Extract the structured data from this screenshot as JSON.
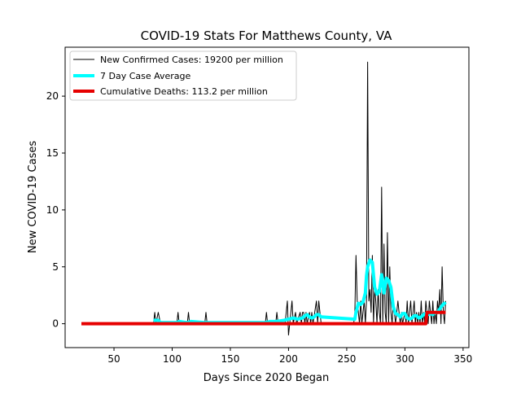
{
  "chart_data": {
    "type": "line",
    "title": "COVID-19 Stats For Matthews County, VA",
    "xlabel": "Days Since 2020 Began",
    "ylabel": "New COVID-19 Cases",
    "xlim": [
      8,
      355
    ],
    "ylim": [
      -2.1,
      24.3
    ],
    "xticks": [
      50,
      100,
      150,
      200,
      250,
      300,
      350
    ],
    "yticks": [
      0,
      5,
      10,
      15,
      20
    ],
    "grid": false,
    "legend_position": "top-left",
    "series": [
      {
        "name": "New Confirmed Cases: 19200 per million",
        "color": "#000000",
        "style": "thin",
        "points": [
          [
            84,
            0
          ],
          [
            85,
            1
          ],
          [
            86,
            0
          ],
          [
            88,
            1
          ],
          [
            90,
            0
          ],
          [
            104,
            0
          ],
          [
            105,
            1
          ],
          [
            106,
            0
          ],
          [
            113,
            0
          ],
          [
            114,
            1
          ],
          [
            115,
            0
          ],
          [
            128,
            0
          ],
          [
            129,
            1
          ],
          [
            130,
            0
          ],
          [
            180,
            0
          ],
          [
            181,
            1
          ],
          [
            182,
            0
          ],
          [
            189,
            0
          ],
          [
            190,
            1
          ],
          [
            191,
            0
          ],
          [
            197,
            0
          ],
          [
            198,
            1
          ],
          [
            199,
            2
          ],
          [
            200,
            -1
          ],
          [
            201,
            0
          ],
          [
            202,
            1
          ],
          [
            203,
            2
          ],
          [
            204,
            0
          ],
          [
            206,
            1
          ],
          [
            207,
            0
          ],
          [
            210,
            1
          ],
          [
            211,
            0
          ],
          [
            212,
            1
          ],
          [
            213,
            1
          ],
          [
            214,
            0
          ],
          [
            215,
            1
          ],
          [
            216,
            0
          ],
          [
            218,
            1
          ],
          [
            219,
            0
          ],
          [
            220,
            1
          ],
          [
            221,
            0
          ],
          [
            224,
            2
          ],
          [
            225,
            0
          ],
          [
            226,
            2
          ],
          [
            227,
            1
          ],
          [
            228,
            0
          ],
          [
            256,
            0
          ],
          [
            257,
            1
          ],
          [
            258,
            6
          ],
          [
            259,
            2
          ],
          [
            260,
            1
          ],
          [
            261,
            0
          ],
          [
            262,
            2
          ],
          [
            263,
            0
          ],
          [
            264,
            1
          ],
          [
            265,
            2
          ],
          [
            266,
            0
          ],
          [
            267,
            2
          ],
          [
            268,
            23
          ],
          [
            269,
            2
          ],
          [
            270,
            3
          ],
          [
            271,
            1
          ],
          [
            272,
            6
          ],
          [
            273,
            0
          ],
          [
            274,
            3
          ],
          [
            275,
            2
          ],
          [
            276,
            0
          ],
          [
            277,
            3
          ],
          [
            278,
            1
          ],
          [
            279,
            0
          ],
          [
            280,
            12
          ],
          [
            281,
            0
          ],
          [
            282,
            7
          ],
          [
            283,
            1
          ],
          [
            284,
            0
          ],
          [
            285,
            8
          ],
          [
            286,
            0
          ],
          [
            287,
            5
          ],
          [
            288,
            1
          ],
          [
            289,
            0
          ],
          [
            290,
            2
          ],
          [
            291,
            1
          ],
          [
            292,
            0
          ],
          [
            293,
            1
          ],
          [
            294,
            2
          ],
          [
            295,
            1
          ],
          [
            296,
            0
          ],
          [
            297,
            1
          ],
          [
            298,
            0
          ],
          [
            300,
            1
          ],
          [
            301,
            0
          ],
          [
            302,
            2
          ],
          [
            303,
            0
          ],
          [
            305,
            2
          ],
          [
            306,
            0
          ],
          [
            307,
            1
          ],
          [
            308,
            2
          ],
          [
            309,
            0
          ],
          [
            310,
            1
          ],
          [
            311,
            0
          ],
          [
            312,
            1
          ],
          [
            313,
            0
          ],
          [
            314,
            2
          ],
          [
            315,
            0
          ],
          [
            316,
            1
          ],
          [
            317,
            0
          ],
          [
            318,
            2
          ],
          [
            319,
            1
          ],
          [
            320,
            0
          ],
          [
            321,
            2
          ],
          [
            322,
            1
          ],
          [
            323,
            0
          ],
          [
            324,
            2
          ],
          [
            325,
            0
          ],
          [
            326,
            1
          ],
          [
            327,
            0
          ],
          [
            328,
            2
          ],
          [
            329,
            1
          ],
          [
            330,
            3
          ],
          [
            331,
            0
          ],
          [
            332,
            5
          ],
          [
            333,
            1
          ],
          [
            334,
            0
          ],
          [
            335,
            2
          ]
        ]
      },
      {
        "name": "7 Day Case Average",
        "color": "#00ffff",
        "style": "thick",
        "points": [
          [
            84,
            0.3
          ],
          [
            86,
            0.3
          ],
          [
            88,
            0.3
          ],
          [
            90,
            0.1
          ],
          [
            104,
            0.1
          ],
          [
            106,
            0.2
          ],
          [
            113,
            0.1
          ],
          [
            116,
            0.2
          ],
          [
            128,
            0.1
          ],
          [
            130,
            0.1
          ],
          [
            180,
            0.1
          ],
          [
            184,
            0.2
          ],
          [
            190,
            0.2
          ],
          [
            196,
            0.3
          ],
          [
            200,
            0.4
          ],
          [
            204,
            0.5
          ],
          [
            208,
            0.4
          ],
          [
            212,
            0.5
          ],
          [
            214,
            0.7
          ],
          [
            216,
            0.8
          ],
          [
            218,
            0.6
          ],
          [
            220,
            0.5
          ],
          [
            222,
            0.6
          ],
          [
            224,
            0.8
          ],
          [
            226,
            0.8
          ],
          [
            228,
            0.6
          ],
          [
            257,
            0.4
          ],
          [
            258,
            1.0
          ],
          [
            260,
            1.8
          ],
          [
            262,
            1.7
          ],
          [
            264,
            1.9
          ],
          [
            266,
            2.7
          ],
          [
            267,
            4.2
          ],
          [
            268,
            5.0
          ],
          [
            270,
            5.6
          ],
          [
            272,
            5.4
          ],
          [
            274,
            3.2
          ],
          [
            276,
            2.6
          ],
          [
            278,
            2.8
          ],
          [
            280,
            4.3
          ],
          [
            282,
            2.7
          ],
          [
            284,
            4.0
          ],
          [
            286,
            3.8
          ],
          [
            288,
            3.2
          ],
          [
            290,
            1.5
          ],
          [
            292,
            0.9
          ],
          [
            294,
            0.8
          ],
          [
            296,
            0.6
          ],
          [
            298,
            0.9
          ],
          [
            300,
            0.9
          ],
          [
            302,
            0.5
          ],
          [
            304,
            0.4
          ],
          [
            306,
            0.5
          ],
          [
            308,
            0.7
          ],
          [
            310,
            0.7
          ],
          [
            312,
            0.5
          ],
          [
            314,
            0.6
          ],
          [
            316,
            0.8
          ],
          [
            318,
            0.9
          ],
          [
            320,
            0.8
          ],
          [
            322,
            0.9
          ],
          [
            324,
            0.8
          ],
          [
            326,
            1.0
          ],
          [
            328,
            1.0
          ],
          [
            330,
            1.3
          ],
          [
            332,
            1.6
          ],
          [
            334,
            1.8
          ],
          [
            335,
            1.7
          ]
        ]
      },
      {
        "name": "Cumulative Deaths: 113.2 per million",
        "color": "#e60000",
        "style": "thick",
        "points": [
          [
            22,
            0
          ],
          [
            318,
            0
          ],
          [
            319,
            1
          ],
          [
            335,
            1
          ]
        ]
      }
    ]
  }
}
